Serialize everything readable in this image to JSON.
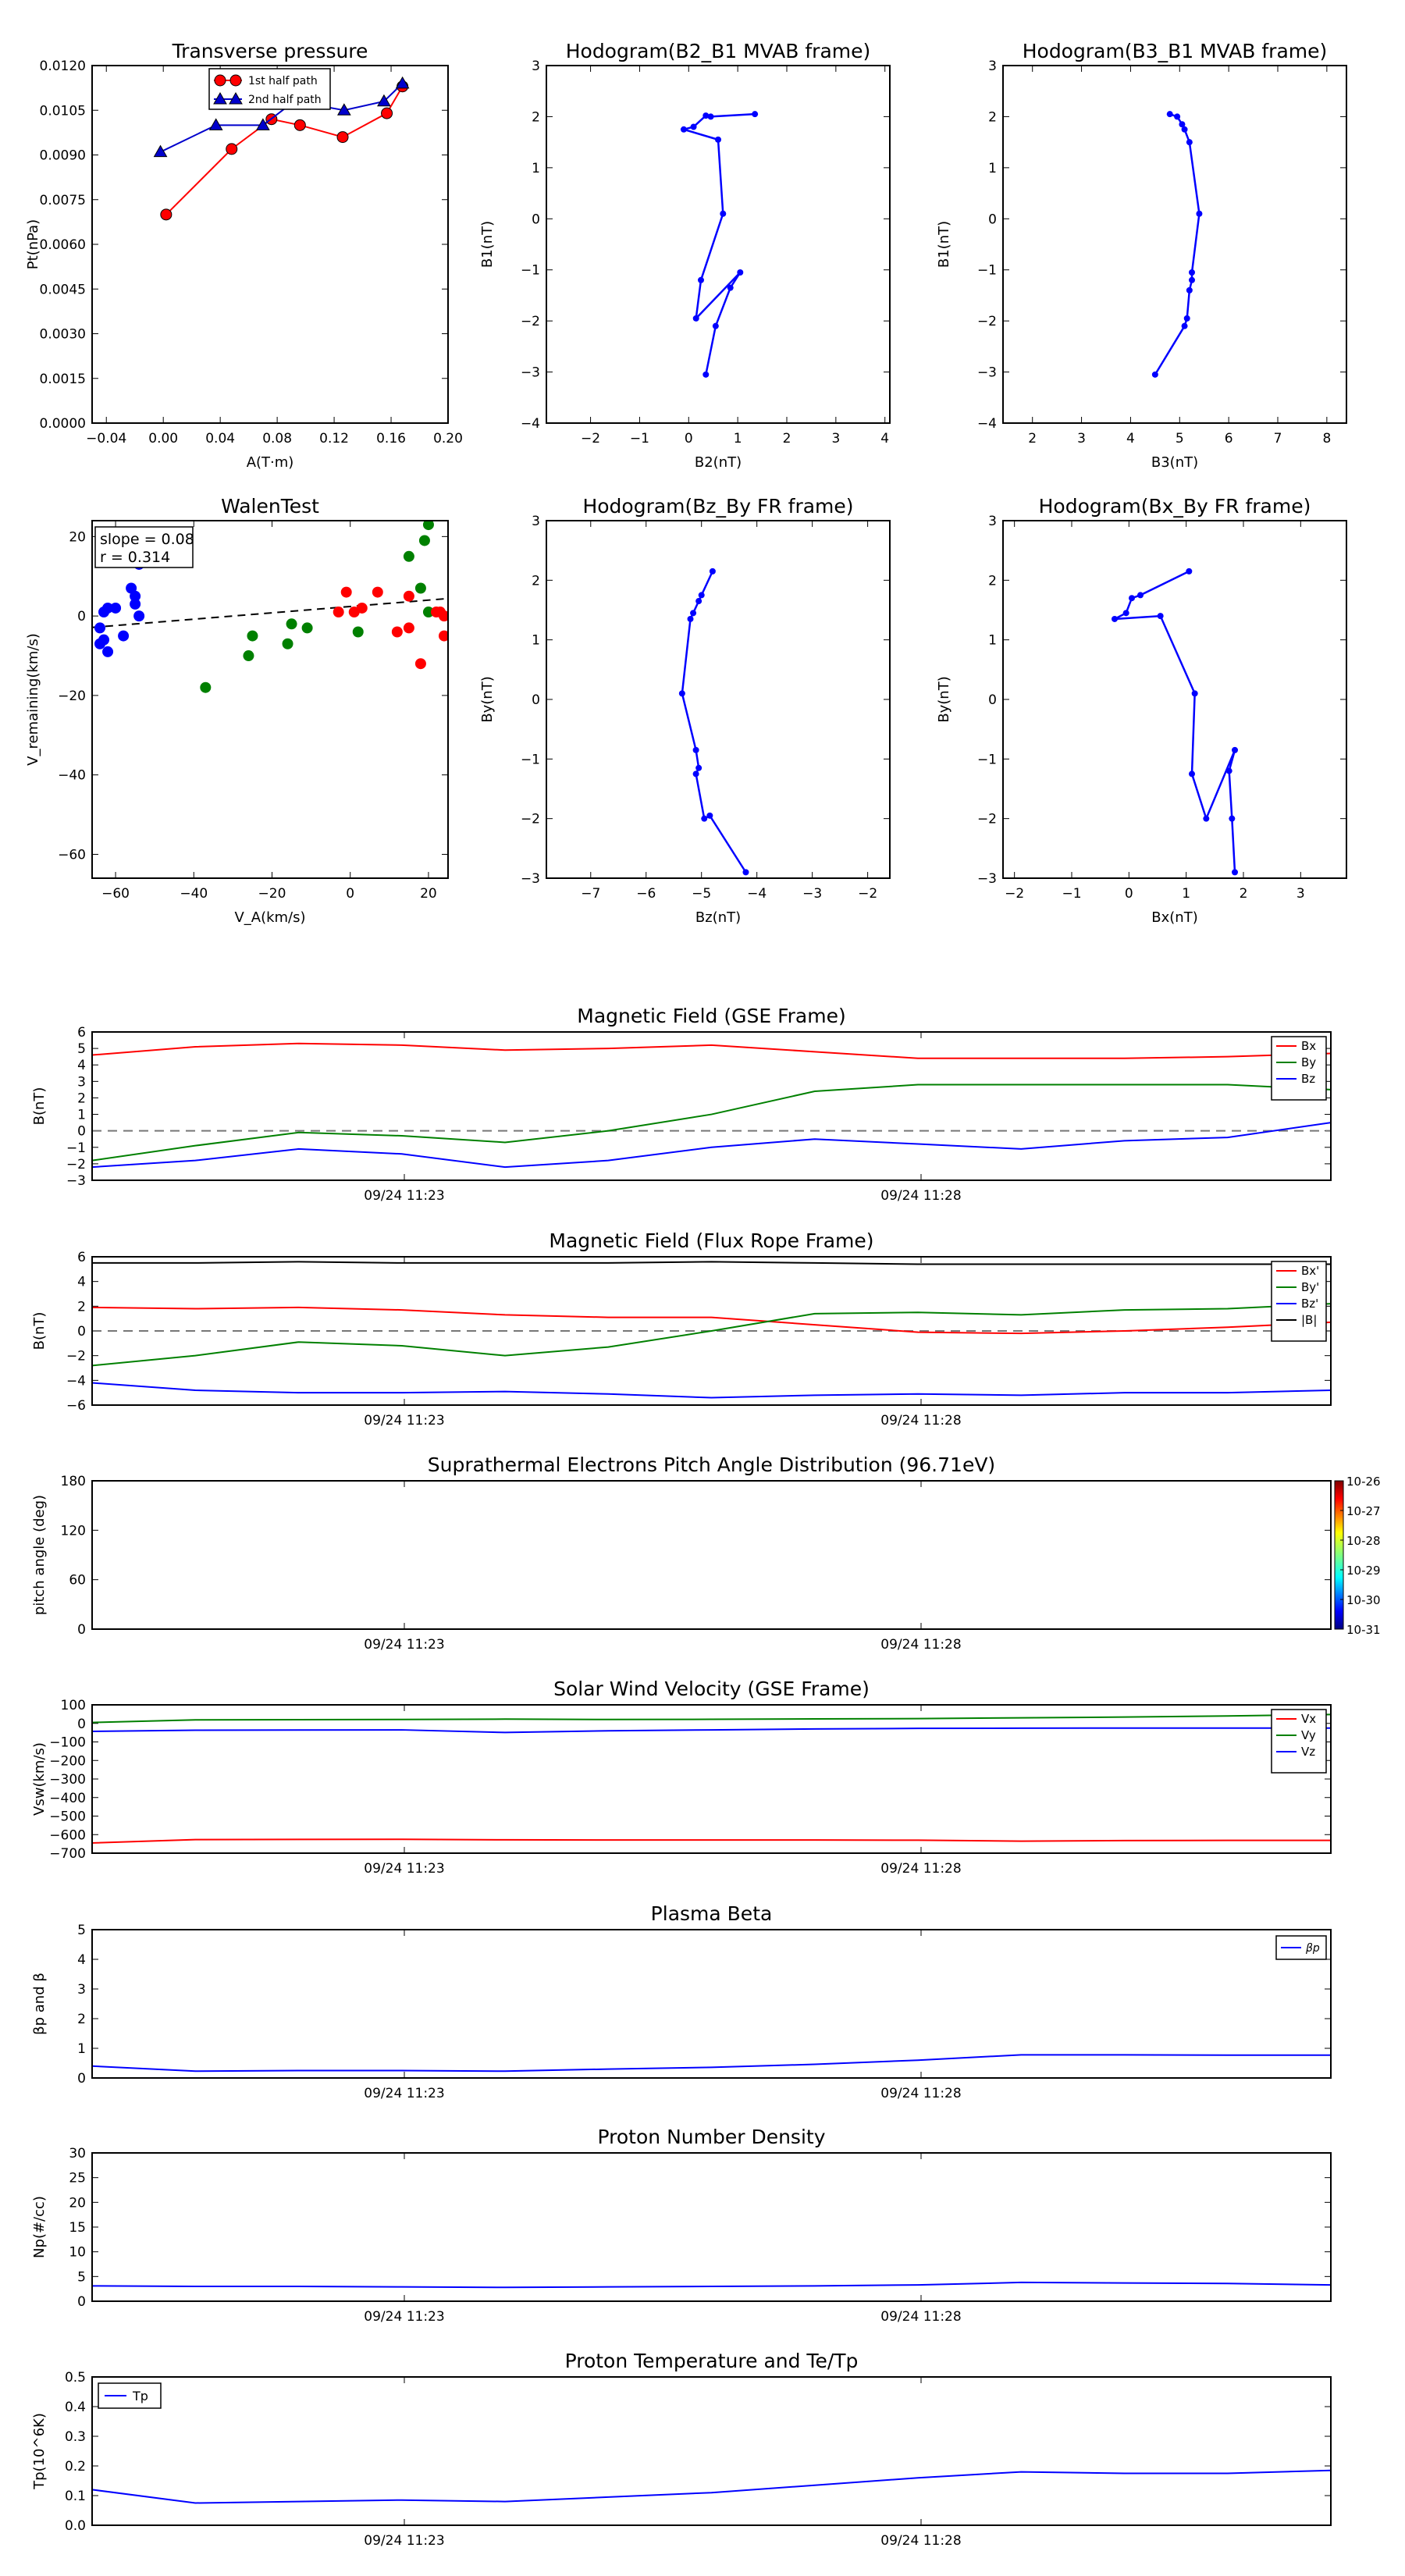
{
  "chart_data": [
    {
      "type": "scatter",
      "title": "Transverse pressure",
      "xlabel": "A(T·m)",
      "ylabel": "Pt(nPa)",
      "xlim": [
        -0.05,
        0.2
      ],
      "ylim": [
        0,
        0.012
      ],
      "xticks": [
        "−0.04",
        "0.00",
        "0.04",
        "0.08",
        "0.12",
        "0.16",
        "0.20"
      ],
      "xtick_values": [
        -0.04,
        0.0,
        0.04,
        0.08,
        0.12,
        0.16,
        0.2
      ],
      "yticks": [
        "0.0000",
        "0.0015",
        "0.0030",
        "0.0045",
        "0.0060",
        "0.0075",
        "0.0090",
        "0.0105",
        "0.0120"
      ],
      "ytick_values": [
        0,
        0.0015,
        0.003,
        0.0045,
        0.006,
        0.0075,
        0.009,
        0.0105,
        0.012
      ],
      "legend": "upper-center",
      "series": [
        {
          "name": "1st half path",
          "color": "#ff0000",
          "marker": "circle",
          "x": [
            0.002,
            0.048,
            0.076,
            0.096,
            0.126,
            0.157,
            0.168
          ],
          "y": [
            0.007,
            0.0092,
            0.0102,
            0.01,
            0.0096,
            0.0104,
            0.0113
          ]
        },
        {
          "name": "2nd half path",
          "color": "#0000cc",
          "marker": "triangle",
          "x": [
            -0.002,
            0.037,
            0.07,
            0.092,
            0.127,
            0.155,
            0.168
          ],
          "y": [
            0.0091,
            0.01,
            0.01,
            0.0108,
            0.0105,
            0.0108,
            0.0114
          ]
        }
      ]
    },
    {
      "type": "line",
      "title": "Hodogram(B2_B1 MVAB frame)",
      "xlabel": "B2(nT)",
      "ylabel": "B1(nT)",
      "xlim": [
        -2.9,
        4.1
      ],
      "ylim": [
        -4,
        3
      ],
      "xticks": [
        "−2",
        "−1",
        "0",
        "1",
        "2",
        "3",
        "4"
      ],
      "xtick_values": [
        -2,
        -1,
        0,
        1,
        2,
        3,
        4
      ],
      "yticks": [
        "−4",
        "−3",
        "−2",
        "−1",
        "0",
        "1",
        "2",
        "3"
      ],
      "ytick_values": [
        -4,
        -3,
        -2,
        -1,
        0,
        1,
        2,
        3
      ],
      "color": "#0000ff",
      "x": [
        1.35,
        0.45,
        0.35,
        0.1,
        -0.1,
        0.6,
        0.7,
        0.25,
        0.15,
        1.05,
        0.85,
        0.55,
        0.35
      ],
      "y": [
        2.05,
        2.0,
        2.02,
        1.8,
        1.75,
        1.55,
        0.1,
        -1.2,
        -1.95,
        -1.05,
        -1.35,
        -2.1,
        -3.05
      ]
    },
    {
      "type": "line",
      "title": "Hodogram(B3_B1 MVAB frame)",
      "xlabel": "B3(nT)",
      "ylabel": "B1(nT)",
      "xlim": [
        1.4,
        8.4
      ],
      "ylim": [
        -4,
        3
      ],
      "xticks": [
        "2",
        "3",
        "4",
        "5",
        "6",
        "7",
        "8"
      ],
      "xtick_values": [
        2,
        3,
        4,
        5,
        6,
        7,
        8
      ],
      "yticks": [
        "−4",
        "−3",
        "−2",
        "−1",
        "0",
        "1",
        "2",
        "3"
      ],
      "ytick_values": [
        -4,
        -3,
        -2,
        -1,
        0,
        1,
        2,
        3
      ],
      "color": "#0000ff",
      "x": [
        4.8,
        4.95,
        5.05,
        5.1,
        5.2,
        5.4,
        5.25,
        5.25,
        5.2,
        5.15,
        5.1,
        4.5
      ],
      "y": [
        2.05,
        2.0,
        1.85,
        1.75,
        1.5,
        0.1,
        -1.05,
        -1.2,
        -1.4,
        -1.95,
        -2.1,
        -3.05
      ]
    },
    {
      "type": "scatter",
      "title": "WalenTest",
      "xlabel": "V_A(km/s)",
      "ylabel": "V_remaining(km/s)",
      "xlim": [
        -66,
        25
      ],
      "ylim": [
        -66,
        24
      ],
      "xticks": [
        "−60",
        "−40",
        "−20",
        "0",
        "20"
      ],
      "xtick_values": [
        -60,
        -40,
        -20,
        0,
        20
      ],
      "yticks": [
        "−60",
        "−40",
        "−20",
        "0",
        "20"
      ],
      "ytick_values": [
        -60,
        -40,
        -20,
        0,
        20
      ],
      "annotation": [
        "slope = 0.08",
        "r = 0.314"
      ],
      "fit_line": {
        "slope": 0.08,
        "intercept": 2.4
      },
      "series": [
        {
          "color": "#0000ff",
          "x": [
            -64,
            -63,
            -63,
            -62,
            -60,
            -58,
            -56,
            -55,
            -55,
            -54,
            -54,
            -53,
            -64,
            -62
          ],
          "y": [
            -7,
            -6,
            1,
            2,
            2,
            -5,
            7,
            5,
            3,
            0,
            13,
            15,
            -3,
            -9
          ]
        },
        {
          "color": "#008000",
          "x": [
            -37,
            -26,
            -25,
            -16,
            -15,
            -11,
            2,
            15,
            18,
            19,
            20,
            20
          ],
          "y": [
            -18,
            -10,
            -5,
            -7,
            -2,
            -3,
            -4,
            15,
            7,
            19,
            23,
            1
          ]
        },
        {
          "color": "#ff0000",
          "x": [
            -3,
            -1,
            1,
            3,
            7,
            12,
            15,
            15,
            18,
            22,
            23,
            24,
            24
          ],
          "y": [
            1,
            6,
            1,
            2,
            6,
            -4,
            5,
            -3,
            -12,
            1,
            1,
            0,
            -5
          ]
        }
      ]
    },
    {
      "type": "line",
      "title": "Hodogram(Bz_By FR frame)",
      "xlabel": "Bz(nT)",
      "ylabel": "By(nT)",
      "xlim": [
        -7.8,
        -1.6
      ],
      "ylim": [
        -3,
        3
      ],
      "xticks": [
        "−7",
        "−6",
        "−5",
        "−4",
        "−3",
        "−2"
      ],
      "xtick_values": [
        -7,
        -6,
        -5,
        -4,
        -3,
        -2
      ],
      "yticks": [
        "−3",
        "−2",
        "−1",
        "0",
        "1",
        "2",
        "3"
      ],
      "ytick_values": [
        -3,
        -2,
        -1,
        0,
        1,
        2,
        3
      ],
      "color": "#0000ff",
      "x": [
        -4.8,
        -5.0,
        -5.05,
        -5.15,
        -5.2,
        -5.35,
        -5.1,
        -5.05,
        -5.1,
        -4.95,
        -4.85,
        -4.2
      ],
      "y": [
        2.15,
        1.75,
        1.65,
        1.45,
        1.35,
        0.1,
        -0.85,
        -1.15,
        -1.25,
        -2.0,
        -1.95,
        -2.9
      ]
    },
    {
      "type": "line",
      "title": "Hodogram(Bx_By FR frame)",
      "xlabel": "Bx(nT)",
      "ylabel": "By(nT)",
      "xlim": [
        -2.2,
        3.8
      ],
      "ylim": [
        -3,
        3
      ],
      "xticks": [
        "−2",
        "−1",
        "0",
        "1",
        "2",
        "3"
      ],
      "xtick_values": [
        -2,
        -1,
        0,
        1,
        2,
        3
      ],
      "yticks": [
        "−3",
        "−2",
        "−1",
        "0",
        "1",
        "2",
        "3"
      ],
      "ytick_values": [
        -3,
        -2,
        -1,
        0,
        1,
        2,
        3
      ],
      "color": "#0000ff",
      "x": [
        1.05,
        0.2,
        0.05,
        -0.05,
        -0.25,
        0.55,
        1.15,
        1.1,
        1.35,
        1.85,
        1.75,
        1.8,
        1.85
      ],
      "y": [
        2.15,
        1.75,
        1.7,
        1.45,
        1.35,
        1.4,
        0.1,
        -1.25,
        -2.0,
        -0.85,
        -1.2,
        -2.0,
        -2.9
      ]
    },
    {
      "type": "line",
      "title": "Magnetic Field (GSE Frame)",
      "ylabel": "B(nT)",
      "ylim": [
        -3,
        6
      ],
      "yticks": [
        "−3",
        "−2",
        "−1",
        "0",
        "1",
        "2",
        "3",
        "4",
        "5",
        "6"
      ],
      "ytick_values": [
        -3,
        -2,
        -1,
        0,
        1,
        2,
        3,
        4,
        5,
        6
      ],
      "xticks": [
        "09/24 11:23",
        "09/24 11:28"
      ],
      "legend": "right",
      "zero_line": true,
      "series": [
        {
          "name": "Bx",
          "color": "#ff0000",
          "values": [
            4.6,
            5.1,
            5.3,
            5.2,
            4.9,
            5.0,
            5.2,
            4.8,
            4.4,
            4.4,
            4.4,
            4.5,
            4.7
          ]
        },
        {
          "name": "By",
          "color": "#008000",
          "values": [
            -1.8,
            -0.9,
            -0.1,
            -0.3,
            -0.7,
            0.0,
            1.0,
            2.4,
            2.8,
            2.8,
            2.8,
            2.8,
            2.5
          ]
        },
        {
          "name": "Bz",
          "color": "#0000ff",
          "values": [
            -2.2,
            -1.8,
            -1.1,
            -1.4,
            -2.2,
            -1.8,
            -1.0,
            -0.5,
            -0.8,
            -1.1,
            -0.6,
            -0.4,
            0.5
          ]
        }
      ]
    },
    {
      "type": "line",
      "title": "Magnetic Field (Flux Rope Frame)",
      "ylabel": "B(nT)",
      "ylim": [
        -6,
        6
      ],
      "yticks": [
        "−6",
        "−4",
        "−2",
        "0",
        "2",
        "4",
        "6"
      ],
      "ytick_values": [
        -6,
        -4,
        -2,
        0,
        2,
        4,
        6
      ],
      "xticks": [
        "09/24 11:23",
        "09/24 11:28"
      ],
      "legend": "right",
      "zero_line": true,
      "series": [
        {
          "name": "Bx'",
          "color": "#ff0000",
          "values": [
            1.9,
            1.8,
            1.9,
            1.7,
            1.3,
            1.1,
            1.1,
            0.5,
            -0.1,
            -0.2,
            0.0,
            0.3,
            0.7
          ]
        },
        {
          "name": "By'",
          "color": "#008000",
          "values": [
            -2.8,
            -2.0,
            -0.9,
            -1.2,
            -2.0,
            -1.3,
            0.0,
            1.4,
            1.5,
            1.3,
            1.7,
            1.8,
            2.2
          ]
        },
        {
          "name": "Bz'",
          "color": "#0000ff",
          "values": [
            -4.2,
            -4.8,
            -5.0,
            -5.0,
            -4.9,
            -5.1,
            -5.4,
            -5.2,
            -5.1,
            -5.2,
            -5.0,
            -5.0,
            -4.8
          ]
        },
        {
          "name": "|B|",
          "color": "#000000",
          "values": [
            5.5,
            5.5,
            5.6,
            5.5,
            5.5,
            5.5,
            5.6,
            5.5,
            5.4,
            5.4,
            5.4,
            5.4,
            5.4
          ]
        }
      ]
    },
    {
      "type": "heatmap",
      "title": "Suprathermal Electrons Pitch Angle Distribution (96.71eV)",
      "ylabel": "pitch angle (deg)",
      "ylim": [
        0,
        180
      ],
      "yticks": [
        "0",
        "60",
        "120",
        "180"
      ],
      "ytick_values": [
        0,
        60,
        120,
        180
      ],
      "xticks": [
        "09/24 11:23",
        "09/24 11:28"
      ],
      "colorbar_ticks": [
        "10-26",
        "10-27",
        "10-28",
        "10-29",
        "10-30",
        "10-31"
      ],
      "colorbar_exponents": [
        -26,
        -27,
        -28,
        -29,
        -30,
        -31
      ],
      "values": []
    },
    {
      "type": "line",
      "title": "Solar Wind Velocity (GSE Frame)",
      "ylabel": "Vsw(km/s)",
      "ylim": [
        -700,
        100
      ],
      "yticks": [
        "−700",
        "−600",
        "−500",
        "−400",
        "−300",
        "−200",
        "−100",
        "0",
        "100"
      ],
      "ytick_values": [
        -700,
        -600,
        -500,
        -400,
        -300,
        -200,
        -100,
        0,
        100
      ],
      "xticks": [
        "09/24 11:23",
        "09/24 11:28"
      ],
      "legend": "right",
      "series": [
        {
          "name": "Vx",
          "color": "#ff0000",
          "values": [
            -645,
            -627,
            -626,
            -625,
            -628,
            -629,
            -629,
            -629,
            -630,
            -635,
            -632,
            -631,
            -631
          ]
        },
        {
          "name": "Vy",
          "color": "#008000",
          "values": [
            5,
            19,
            20,
            21,
            23,
            21,
            22,
            24,
            26,
            30,
            34,
            40,
            48
          ]
        },
        {
          "name": "Vz",
          "color": "#0000ff",
          "values": [
            -43,
            -37,
            -36,
            -35,
            -49,
            -40,
            -35,
            -30,
            -27,
            -26,
            -25,
            -25,
            -25
          ]
        }
      ]
    },
    {
      "type": "line",
      "title": "Plasma Beta",
      "ylabel": "βp and β",
      "ylim": [
        0,
        5
      ],
      "yticks": [
        "0",
        "1",
        "2",
        "3",
        "4",
        "5"
      ],
      "ytick_values": [
        0,
        1,
        2,
        3,
        4,
        5
      ],
      "xticks": [
        "09/24 11:23",
        "09/24 11:28"
      ],
      "legend": "upper-right",
      "series": [
        {
          "name": "βp",
          "color": "#0000ff",
          "values": [
            0.4,
            0.23,
            0.25,
            0.25,
            0.23,
            0.3,
            0.36,
            0.46,
            0.6,
            0.78,
            0.78,
            0.77,
            0.77
          ]
        }
      ]
    },
    {
      "type": "line",
      "title": "Proton Number Density",
      "ylabel": "Np(#/cc)",
      "ylim": [
        0,
        30
      ],
      "yticks": [
        "0",
        "5",
        "10",
        "15",
        "20",
        "25",
        "30"
      ],
      "ytick_values": [
        0,
        5,
        10,
        15,
        20,
        25,
        30
      ],
      "xticks": [
        "09/24 11:23",
        "09/24 11:28"
      ],
      "series": [
        {
          "name": "Np",
          "color": "#0000ff",
          "values": [
            3.1,
            3.0,
            3.0,
            2.9,
            2.8,
            2.9,
            3.0,
            3.1,
            3.3,
            3.8,
            3.7,
            3.6,
            3.3
          ]
        }
      ]
    },
    {
      "type": "line",
      "title": "Proton Temperature and Te/Tp",
      "ylabel": "Tp(10^6K)",
      "ylim": [
        0,
        0.5
      ],
      "yticks": [
        "0.0",
        "0.1",
        "0.2",
        "0.3",
        "0.4",
        "0.5"
      ],
      "ytick_values": [
        0,
        0.1,
        0.2,
        0.3,
        0.4,
        0.5
      ],
      "xticks": [
        "09/24 11:23",
        "09/24 11:28"
      ],
      "legend": "upper-left",
      "series": [
        {
          "name": "Tp",
          "color": "#0000ff",
          "values": [
            0.12,
            0.075,
            0.08,
            0.085,
            0.08,
            0.095,
            0.11,
            0.135,
            0.16,
            0.18,
            0.175,
            0.175,
            0.185
          ]
        }
      ]
    }
  ]
}
